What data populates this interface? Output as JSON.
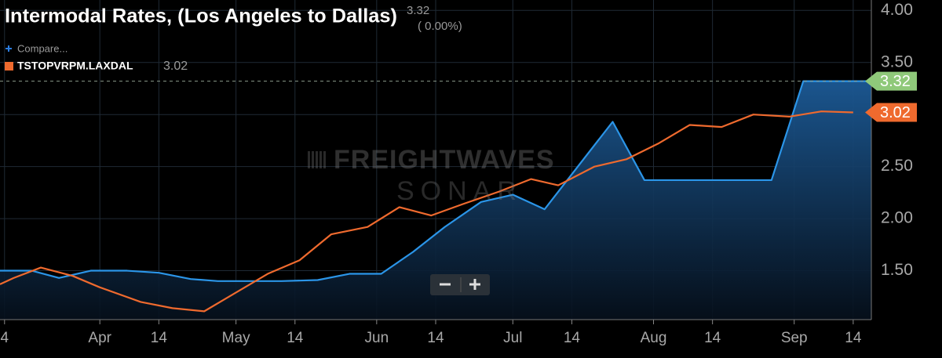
{
  "chart_data": {
    "type": "line",
    "title": "Intermodal Rates, (Los Angeles to Dallas)",
    "change_label": "( 0.00%)",
    "compare_label": "Compare...",
    "watermark": [
      "FREIGHTWAVES",
      "SONAR"
    ],
    "series": [
      {
        "color": "#2b95e8",
        "x": [
          69,
          76,
          82,
          89,
          97,
          104,
          111,
          117,
          124,
          131,
          139,
          146,
          153,
          160,
          167,
          175,
          182,
          189,
          204,
          211,
          239,
          246,
          261
        ],
        "values": [
          1.5,
          1.5,
          1.43,
          1.5,
          1.5,
          1.48,
          1.42,
          1.4,
          1.4,
          1.4,
          1.41,
          1.47,
          1.47,
          1.68,
          1.92,
          2.16,
          2.23,
          2.09,
          2.93,
          2.37,
          2.37,
          3.32,
          3.32
        ],
        "tag_color": "#8fc97a"
      },
      {
        "name": "TSTOPVRPM.LAXDAL",
        "color": "#ef6a2e",
        "x": [
          69,
          72,
          78,
          85,
          91,
          100,
          107,
          114,
          121,
          128,
          135,
          142,
          150,
          157,
          164,
          171,
          179,
          186,
          192,
          200,
          207,
          214,
          221,
          228,
          235,
          243,
          250,
          257
        ],
        "values": [
          1.37,
          1.43,
          1.53,
          1.45,
          1.34,
          1.2,
          1.14,
          1.11,
          1.29,
          1.47,
          1.6,
          1.85,
          1.92,
          2.11,
          2.03,
          2.14,
          2.26,
          2.38,
          2.32,
          2.5,
          2.57,
          2.72,
          2.9,
          2.88,
          3.0,
          2.98,
          3.03,
          3.02
        ],
        "tag_color": "#ef6a2e"
      }
    ],
    "xlim": [
      69,
      261
    ],
    "xticks": [
      {
        "value": 70,
        "label": "4"
      },
      {
        "value": 91,
        "label": "Apr"
      },
      {
        "value": 104,
        "label": "14"
      },
      {
        "value": 121,
        "label": "May"
      },
      {
        "value": 134,
        "label": "14"
      },
      {
        "value": 152,
        "label": "Jun"
      },
      {
        "value": 165,
        "label": "14"
      },
      {
        "value": 182,
        "label": "Jul"
      },
      {
        "value": 195,
        "label": "14"
      },
      {
        "value": 213,
        "label": "Aug"
      },
      {
        "value": 226,
        "label": "14"
      },
      {
        "value": 244,
        "label": "Sep"
      },
      {
        "value": 257,
        "label": "14"
      }
    ],
    "ylim": [
      1.03,
      4.1
    ],
    "yticks": [
      {
        "value": 1.5,
        "label": "1.50"
      },
      {
        "value": 2,
        "label": "2.00"
      },
      {
        "value": 2.5,
        "label": "2.50"
      },
      {
        "value": 3,
        "label": "3.00"
      },
      {
        "value": 3.5,
        "label": "3.50"
      },
      {
        "value": 4,
        "label": "4.00"
      }
    ],
    "grid": true
  }
}
